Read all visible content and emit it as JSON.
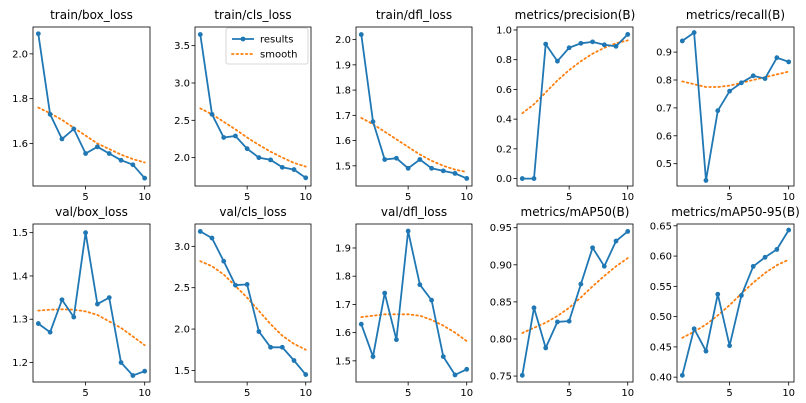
{
  "colors": {
    "results": "#1f77b4",
    "smooth": "#ff7f0e"
  },
  "legend": {
    "results": "results",
    "smooth": "smooth"
  },
  "chart_data": [
    {
      "type": "line",
      "title": "train/box_loss",
      "x": [
        1,
        2,
        3,
        4,
        5,
        6,
        7,
        8,
        9,
        10
      ],
      "series": [
        {
          "name": "results",
          "values": [
            2.09,
            1.73,
            1.62,
            1.665,
            1.555,
            1.585,
            1.555,
            1.525,
            1.505,
            1.445
          ]
        },
        {
          "name": "smooth",
          "values": [
            1.76,
            1.735,
            1.705,
            1.67,
            1.635,
            1.6,
            1.575,
            1.55,
            1.53,
            1.515
          ]
        }
      ],
      "xticks": [
        5,
        10
      ],
      "yticks": [
        1.6,
        1.8,
        2.0
      ],
      "ytick_labels": [
        "1.6",
        "1.8",
        "2.0"
      ],
      "xlim": [
        0.55,
        10.45
      ],
      "ylim": [
        1.41,
        2.12
      ]
    },
    {
      "type": "line",
      "title": "train/cls_loss",
      "x": [
        1,
        2,
        3,
        4,
        5,
        6,
        7,
        8,
        9,
        10
      ],
      "series": [
        {
          "name": "results",
          "values": [
            3.65,
            2.58,
            2.27,
            2.29,
            2.12,
            2.0,
            1.97,
            1.87,
            1.84,
            1.73
          ]
        },
        {
          "name": "smooth",
          "values": [
            2.66,
            2.58,
            2.48,
            2.38,
            2.27,
            2.17,
            2.08,
            2.0,
            1.93,
            1.88
          ]
        }
      ],
      "xticks": [
        5,
        10
      ],
      "yticks": [
        2.0,
        2.5,
        3.0,
        3.5
      ],
      "ytick_labels": [
        "2.0",
        "2.5",
        "3.0",
        "3.5"
      ],
      "xlim": [
        0.55,
        10.45
      ],
      "ylim": [
        1.62,
        3.75
      ]
    },
    {
      "type": "line",
      "title": "train/dfl_loss",
      "x": [
        1,
        2,
        3,
        4,
        5,
        6,
        7,
        8,
        9,
        10
      ],
      "series": [
        {
          "name": "results",
          "values": [
            2.02,
            1.675,
            1.525,
            1.53,
            1.49,
            1.525,
            1.49,
            1.48,
            1.47,
            1.45
          ]
        },
        {
          "name": "smooth",
          "values": [
            1.69,
            1.665,
            1.635,
            1.605,
            1.575,
            1.545,
            1.52,
            1.5,
            1.485,
            1.475
          ]
        }
      ],
      "xticks": [
        5,
        10
      ],
      "yticks": [
        1.5,
        1.6,
        1.7,
        1.8,
        1.9,
        2.0
      ],
      "ytick_labels": [
        "1.5",
        "1.6",
        "1.7",
        "1.8",
        "1.9",
        "2.0"
      ],
      "xlim": [
        0.55,
        10.45
      ],
      "ylim": [
        1.42,
        2.05
      ]
    },
    {
      "type": "line",
      "title": "metrics/precision(B)",
      "x": [
        1,
        2,
        3,
        4,
        5,
        6,
        7,
        8,
        9,
        10
      ],
      "series": [
        {
          "name": "results",
          "values": [
            0.0,
            0.0,
            0.905,
            0.79,
            0.88,
            0.91,
            0.92,
            0.9,
            0.89,
            0.97
          ]
        },
        {
          "name": "smooth",
          "values": [
            0.44,
            0.5,
            0.58,
            0.66,
            0.73,
            0.79,
            0.84,
            0.88,
            0.91,
            0.93
          ]
        }
      ],
      "xticks": [
        5,
        10
      ],
      "yticks": [
        0.0,
        0.2,
        0.4,
        0.6,
        0.8,
        1.0
      ],
      "ytick_labels": [
        "0.0",
        "0.2",
        "0.4",
        "0.6",
        "0.8",
        "1.0"
      ],
      "xlim": [
        0.55,
        10.45
      ],
      "ylim": [
        -0.05,
        1.02
      ]
    },
    {
      "type": "line",
      "title": "metrics/recall(B)",
      "x": [
        1,
        2,
        3,
        4,
        5,
        6,
        7,
        8,
        9,
        10
      ],
      "series": [
        {
          "name": "results",
          "values": [
            0.94,
            0.97,
            0.44,
            0.69,
            0.76,
            0.79,
            0.815,
            0.805,
            0.88,
            0.865
          ]
        },
        {
          "name": "smooth",
          "values": [
            0.795,
            0.785,
            0.775,
            0.775,
            0.78,
            0.79,
            0.8,
            0.81,
            0.82,
            0.83
          ]
        }
      ],
      "xticks": [
        5,
        10
      ],
      "yticks": [
        0.5,
        0.6,
        0.7,
        0.8,
        0.9
      ],
      "ytick_labels": [
        "0.5",
        "0.6",
        "0.7",
        "0.8",
        "0.9"
      ],
      "xlim": [
        0.55,
        10.45
      ],
      "ylim": [
        0.42,
        0.99
      ]
    },
    {
      "type": "line",
      "title": "val/box_loss",
      "x": [
        1,
        2,
        3,
        4,
        5,
        6,
        7,
        8,
        9,
        10
      ],
      "series": [
        {
          "name": "results",
          "values": [
            1.29,
            1.27,
            1.345,
            1.305,
            1.5,
            1.335,
            1.35,
            1.2,
            1.17,
            1.18
          ]
        },
        {
          "name": "smooth",
          "values": [
            1.32,
            1.322,
            1.323,
            1.322,
            1.318,
            1.31,
            1.295,
            1.28,
            1.26,
            1.24
          ]
        }
      ],
      "xticks": [
        5,
        10
      ],
      "yticks": [
        1.2,
        1.3,
        1.4,
        1.5
      ],
      "ytick_labels": [
        "1.2",
        "1.3",
        "1.4",
        "1.5"
      ],
      "xlim": [
        0.55,
        10.45
      ],
      "ylim": [
        1.155,
        1.52
      ]
    },
    {
      "type": "line",
      "title": "val/cls_loss",
      "x": [
        1,
        2,
        3,
        4,
        5,
        6,
        7,
        8,
        9,
        10
      ],
      "series": [
        {
          "name": "results",
          "values": [
            3.18,
            3.1,
            2.82,
            2.53,
            2.54,
            1.97,
            1.78,
            1.78,
            1.62,
            1.45
          ]
        },
        {
          "name": "smooth",
          "values": [
            2.82,
            2.76,
            2.66,
            2.52,
            2.38,
            2.22,
            2.06,
            1.92,
            1.82,
            1.75
          ]
        }
      ],
      "xticks": [
        5,
        10
      ],
      "yticks": [
        1.5,
        2.0,
        2.5,
        3.0
      ],
      "ytick_labels": [
        "1.5",
        "2.0",
        "2.5",
        "3.0"
      ],
      "xlim": [
        0.55,
        10.45
      ],
      "ylim": [
        1.36,
        3.27
      ]
    },
    {
      "type": "line",
      "title": "val/dfl_loss",
      "x": [
        1,
        2,
        3,
        4,
        5,
        6,
        7,
        8,
        9,
        10
      ],
      "series": [
        {
          "name": "results",
          "values": [
            1.63,
            1.515,
            1.74,
            1.575,
            1.96,
            1.77,
            1.715,
            1.515,
            1.45,
            1.47
          ]
        },
        {
          "name": "smooth",
          "values": [
            1.655,
            1.66,
            1.665,
            1.665,
            1.665,
            1.66,
            1.645,
            1.625,
            1.6,
            1.57
          ]
        }
      ],
      "xticks": [
        5,
        10
      ],
      "yticks": [
        1.5,
        1.6,
        1.7,
        1.8,
        1.9
      ],
      "ytick_labels": [
        "1.5",
        "1.6",
        "1.7",
        "1.8",
        "1.9"
      ],
      "xlim": [
        0.55,
        10.45
      ],
      "ylim": [
        1.425,
        1.985
      ]
    },
    {
      "type": "line",
      "title": "metrics/mAP50(B)",
      "x": [
        1,
        2,
        3,
        4,
        5,
        6,
        7,
        8,
        9,
        10
      ],
      "series": [
        {
          "name": "results",
          "values": [
            0.751,
            0.842,
            0.788,
            0.823,
            0.824,
            0.874,
            0.923,
            0.898,
            0.932,
            0.945
          ]
        },
        {
          "name": "smooth",
          "values": [
            0.808,
            0.815,
            0.822,
            0.831,
            0.842,
            0.856,
            0.871,
            0.885,
            0.898,
            0.909
          ]
        }
      ],
      "xticks": [
        5,
        10
      ],
      "yticks": [
        0.75,
        0.8,
        0.85,
        0.9,
        0.95
      ],
      "ytick_labels": [
        "0.75",
        "0.80",
        "0.85",
        "0.90",
        "0.95"
      ],
      "xlim": [
        0.55,
        10.45
      ],
      "ylim": [
        0.742,
        0.955
      ]
    },
    {
      "type": "line",
      "title": "metrics/mAP50-95(B)",
      "x": [
        1,
        2,
        3,
        4,
        5,
        6,
        7,
        8,
        9,
        10
      ],
      "series": [
        {
          "name": "results",
          "values": [
            0.403,
            0.48,
            0.443,
            0.537,
            0.452,
            0.535,
            0.583,
            0.598,
            0.611,
            0.643
          ]
        },
        {
          "name": "smooth",
          "values": [
            0.465,
            0.475,
            0.487,
            0.502,
            0.519,
            0.538,
            0.556,
            0.572,
            0.585,
            0.594
          ]
        }
      ],
      "xticks": [
        5,
        10
      ],
      "yticks": [
        0.4,
        0.45,
        0.5,
        0.55,
        0.6,
        0.65
      ],
      "ytick_labels": [
        "0.40",
        "0.45",
        "0.50",
        "0.55",
        "0.60",
        "0.65"
      ],
      "xlim": [
        0.55,
        10.45
      ],
      "ylim": [
        0.392,
        0.653
      ]
    }
  ]
}
